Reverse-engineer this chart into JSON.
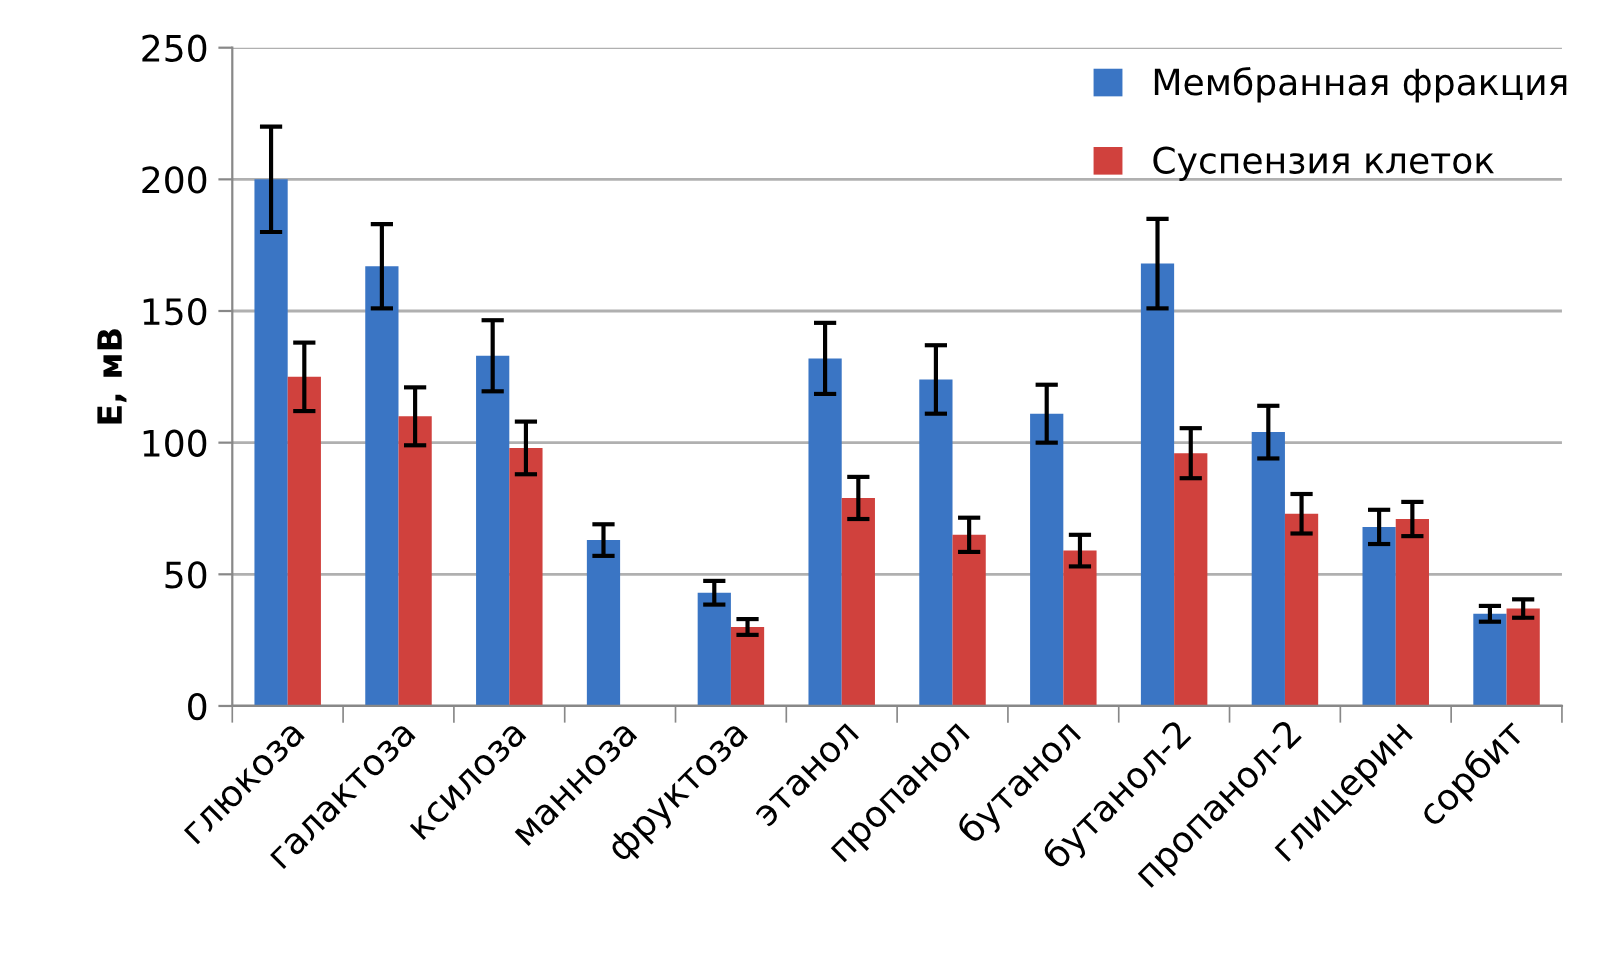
{
  "chart_data": {
    "type": "bar",
    "ylabel": "E, мВ",
    "categories": [
      "глюкоза",
      "галактоза",
      "ксилоза",
      "манноза",
      "фруктоза",
      "этанол",
      "пропанол",
      "бутанол",
      "бутанол-2",
      "пропанол-2",
      "глицерин",
      "сорбит"
    ],
    "series": [
      {
        "name": "Мембранная фракция",
        "color": "#3a75c4",
        "values": [
          200,
          167,
          133,
          63,
          43,
          132,
          124,
          111,
          168,
          104,
          68,
          35
        ],
        "errors": [
          20,
          16,
          13.5,
          6,
          4.5,
          13.5,
          13,
          11,
          17,
          10,
          6.5,
          3
        ]
      },
      {
        "name": "Суспензия клеток",
        "color": "#d0413d",
        "values": [
          125,
          110,
          98,
          null,
          30,
          79,
          65,
          59,
          96,
          73,
          71,
          37
        ],
        "errors": [
          13,
          11,
          10,
          null,
          3,
          8,
          6.5,
          6,
          9.5,
          7.5,
          6.5,
          3.5
        ]
      }
    ],
    "ylim": [
      0,
      250
    ],
    "yticks": [
      0,
      50,
      100,
      150,
      200,
      250
    ],
    "grid": "y",
    "legend": "top right"
  }
}
